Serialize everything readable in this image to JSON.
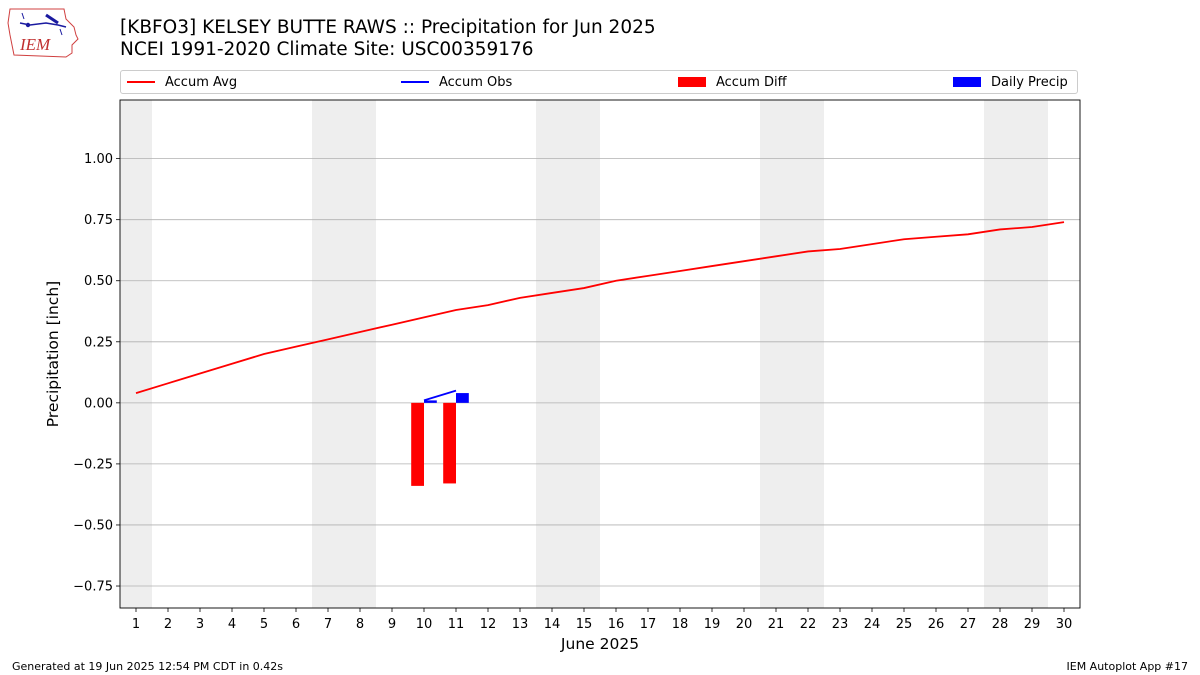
{
  "header": {
    "title": "[KBFO3] KELSEY BUTTE RAWS :: Precipitation for Jun 2025",
    "subtitle": "NCEI 1991-2020 Climate Site: USC00359176",
    "logo_text": "IEM"
  },
  "legend": {
    "items": [
      {
        "label": "Accum Avg",
        "kind": "line",
        "color": "#ff0000"
      },
      {
        "label": "Accum Obs",
        "kind": "line",
        "color": "#0000ff"
      },
      {
        "label": "Accum Diff",
        "kind": "box",
        "color": "#ff0000"
      },
      {
        "label": "Daily Precip",
        "kind": "box",
        "color": "#0000ff"
      }
    ]
  },
  "footer": {
    "generated": "Generated at 19 Jun 2025 12:54 PM CDT in 0.42s",
    "app": "IEM Autoplot App #17"
  },
  "chart_data": {
    "type": "line",
    "xlabel": "June 2025",
    "ylabel": "Precipitation [inch]",
    "xlim": [
      0.5,
      30.5
    ],
    "ylim": [
      -0.84,
      1.24
    ],
    "x_ticks": [
      1,
      2,
      3,
      4,
      5,
      6,
      7,
      8,
      9,
      10,
      11,
      12,
      13,
      14,
      15,
      16,
      17,
      18,
      19,
      20,
      21,
      22,
      23,
      24,
      25,
      26,
      27,
      28,
      29,
      30
    ],
    "y_ticks": [
      -0.75,
      -0.5,
      -0.25,
      0.0,
      0.25,
      0.5,
      0.75,
      1.0
    ],
    "y_tick_labels": [
      "−0.75",
      "−0.50",
      "−0.25",
      "0.00",
      "0.25",
      "0.50",
      "0.75",
      "1.00"
    ],
    "grid": "horizontal",
    "weekend_shading": [
      [
        0.5,
        1.5
      ],
      [
        6.5,
        8.5
      ],
      [
        13.5,
        15.5
      ],
      [
        20.5,
        22.5
      ],
      [
        27.5,
        29.5
      ]
    ],
    "weekend_color": "#eeeeee",
    "series": [
      {
        "name": "Accum Avg",
        "kind": "line",
        "color": "#ff0000",
        "x": [
          1,
          2,
          3,
          4,
          5,
          6,
          7,
          8,
          9,
          10,
          11,
          12,
          13,
          14,
          15,
          16,
          17,
          18,
          19,
          20,
          21,
          22,
          23,
          24,
          25,
          26,
          27,
          28,
          29,
          30
        ],
        "values": [
          0.04,
          0.08,
          0.12,
          0.16,
          0.2,
          0.23,
          0.26,
          0.29,
          0.32,
          0.35,
          0.38,
          0.4,
          0.43,
          0.45,
          0.47,
          0.5,
          0.52,
          0.54,
          0.56,
          0.58,
          0.6,
          0.62,
          0.63,
          0.65,
          0.67,
          0.68,
          0.69,
          0.71,
          0.72,
          0.74
        ]
      },
      {
        "name": "Accum Obs",
        "kind": "line",
        "color": "#0000ff",
        "x": [
          10,
          11
        ],
        "values": [
          0.01,
          0.05
        ]
      },
      {
        "name": "Accum Diff",
        "kind": "bar",
        "color": "#ff0000",
        "x": [
          10,
          11
        ],
        "values": [
          -0.34,
          -0.33
        ]
      },
      {
        "name": "Daily Precip",
        "kind": "bar",
        "color": "#0000ff",
        "x": [
          10,
          11
        ],
        "values": [
          0.01,
          0.04
        ]
      }
    ]
  }
}
